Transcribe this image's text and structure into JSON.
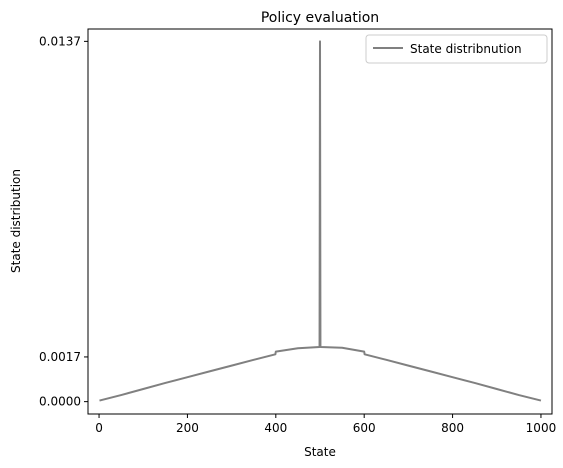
{
  "chart_data": {
    "type": "line",
    "title": "Policy evaluation",
    "xlabel": "State",
    "ylabel": "State distribution",
    "xlim": [
      -25,
      1025
    ],
    "ylim": [
      -0.00047,
      0.01417
    ],
    "xticks": [
      0,
      200,
      400,
      600,
      800,
      1000
    ],
    "xtick_labels": [
      "0",
      "200",
      "400",
      "600",
      "800",
      "1000"
    ],
    "yticks": [
      0.0,
      0.0017,
      0.0137
    ],
    "ytick_labels": [
      "0.0000",
      "0.0017",
      "0.0137"
    ],
    "grid": false,
    "legend_position": "top-right",
    "series": [
      {
        "name": "State distribnution",
        "color": "#808080",
        "x": [
          1,
          50,
          100,
          150,
          200,
          250,
          300,
          350,
          399,
          400,
          450,
          499,
          500,
          501,
          550,
          600,
          601,
          650,
          700,
          750,
          800,
          850,
          900,
          950,
          1000
        ],
        "y": [
          4e-05,
          0.00025,
          0.00048,
          0.00071,
          0.00093,
          0.00115,
          0.00137,
          0.00159,
          0.0018,
          0.0019,
          0.00203,
          0.00208,
          0.0137,
          0.00208,
          0.00205,
          0.0019,
          0.0018,
          0.00159,
          0.00137,
          0.00115,
          0.00093,
          0.00071,
          0.00048,
          0.00025,
          4e-05
        ]
      }
    ]
  }
}
